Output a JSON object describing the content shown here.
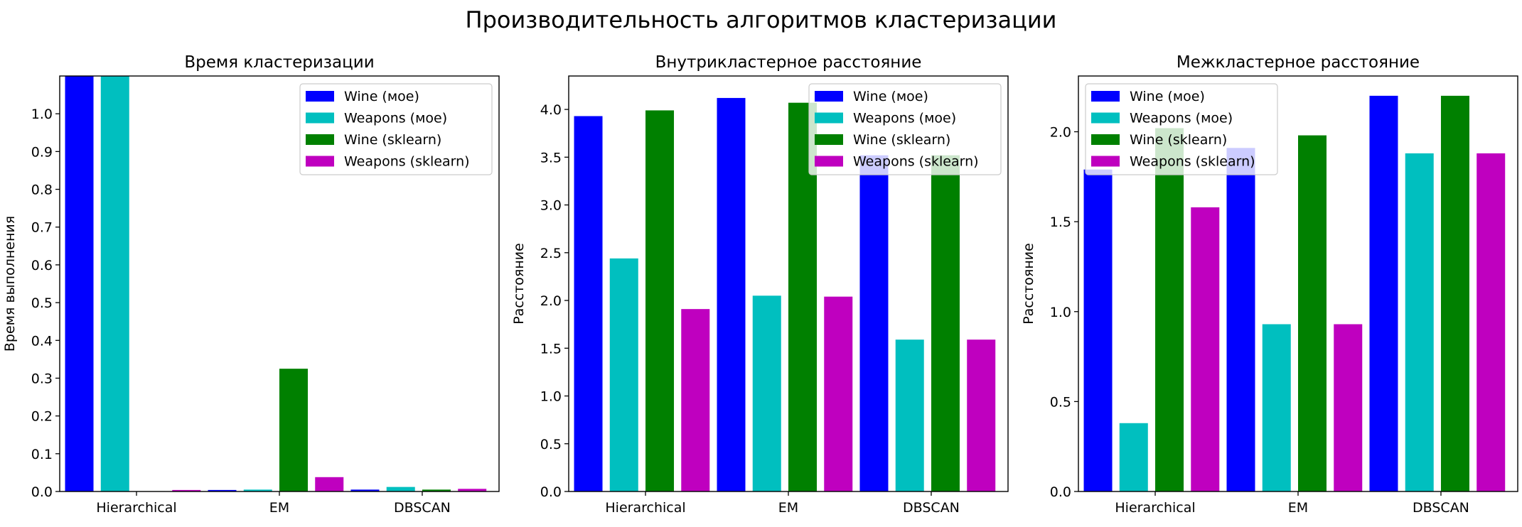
{
  "figure": {
    "title": "Производительность алгоритмов кластеризации"
  },
  "chart_data": [
    {
      "type": "bar",
      "title": "Время кластеризации",
      "xlabel": "",
      "ylabel": "Время выполнения",
      "categories": [
        "Hierarchical",
        "EM",
        "DBSCAN"
      ],
      "ylim": [
        0,
        1.1
      ],
      "yticks": [
        "0.0",
        "0.1",
        "0.2",
        "0.3",
        "0.4",
        "0.5",
        "0.6",
        "0.7",
        "0.8",
        "0.9",
        "1.0"
      ],
      "legend_position": "top-right",
      "series": [
        {
          "name": "Wine (мое)",
          "color": "#0000ff",
          "values": [
            1.1,
            0.004,
            0.005
          ]
        },
        {
          "name": "Weapons (мое)",
          "color": "#00bfbf",
          "values": [
            1.1,
            0.005,
            0.012
          ]
        },
        {
          "name": "Wine (sklearn)",
          "color": "#008000",
          "values": [
            0.001,
            0.325,
            0.005
          ]
        },
        {
          "name": "Weapons (sklearn)",
          "color": "#bf00bf",
          "values": [
            0.004,
            0.038,
            0.007
          ]
        }
      ]
    },
    {
      "type": "bar",
      "title": "Внутрикластерное расстояние",
      "xlabel": "",
      "ylabel": "Расстояние",
      "categories": [
        "Hierarchical",
        "EM",
        "DBSCAN"
      ],
      "ylim": [
        0,
        4.35
      ],
      "yticks": [
        "0.0",
        "0.5",
        "1.0",
        "1.5",
        "2.0",
        "2.5",
        "3.0",
        "3.5",
        "4.0"
      ],
      "legend_position": "top-right",
      "series": [
        {
          "name": "Wine (мое)",
          "color": "#0000ff",
          "values": [
            3.93,
            4.12,
            3.52
          ]
        },
        {
          "name": "Weapons (мое)",
          "color": "#00bfbf",
          "values": [
            2.44,
            2.05,
            1.59
          ]
        },
        {
          "name": "Wine (sklearn)",
          "color": "#008000",
          "values": [
            3.99,
            4.07,
            3.52
          ]
        },
        {
          "name": "Weapons (sklearn)",
          "color": "#bf00bf",
          "values": [
            1.91,
            2.04,
            1.59
          ]
        }
      ]
    },
    {
      "type": "bar",
      "title": "Межкластерное расстояние",
      "xlabel": "",
      "ylabel": "Расстояние",
      "categories": [
        "Hierarchical",
        "EM",
        "DBSCAN"
      ],
      "ylim": [
        0,
        2.31
      ],
      "yticks": [
        "0.0",
        "0.5",
        "1.0",
        "1.5",
        "2.0"
      ],
      "legend_position": "top-left",
      "series": [
        {
          "name": "Wine (мое)",
          "color": "#0000ff",
          "values": [
            1.79,
            1.91,
            2.2
          ]
        },
        {
          "name": "Weapons (мое)",
          "color": "#00bfbf",
          "values": [
            0.38,
            0.93,
            1.88
          ]
        },
        {
          "name": "Wine (sklearn)",
          "color": "#008000",
          "values": [
            2.02,
            1.98,
            2.2
          ]
        },
        {
          "name": "Weapons (sklearn)",
          "color": "#bf00bf",
          "values": [
            1.58,
            0.93,
            1.88
          ]
        }
      ]
    }
  ]
}
